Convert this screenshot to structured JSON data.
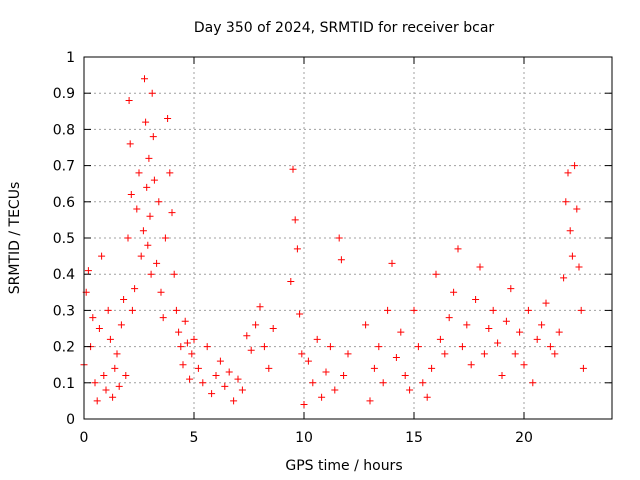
{
  "chart_data": {
    "type": "scatter",
    "title": "Day 350 of 2024, SRMTID for receiver bcar",
    "xlabel": "GPS time / hours",
    "ylabel": "SRMTID / TECUs",
    "xlim": [
      0,
      24
    ],
    "ylim": [
      0,
      1
    ],
    "xticks": [
      0,
      5,
      10,
      15,
      20
    ],
    "xtick_labels": [
      "0",
      "5",
      "10",
      "15",
      "20"
    ],
    "yticks": [
      0,
      0.1,
      0.2,
      0.3,
      0.4,
      0.5,
      0.6,
      0.7,
      0.8,
      0.9,
      1
    ],
    "ytick_labels": [
      "0",
      "0.1",
      "0.2",
      "0.3",
      "0.4",
      "0.5",
      "0.6",
      "0.7",
      "0.8",
      "0.9",
      "1"
    ],
    "grid": true,
    "marker": "+",
    "color": "#ff0000",
    "series": [
      {
        "name": "bcar",
        "x": [
          0.0,
          0.1,
          0.2,
          0.3,
          0.4,
          0.5,
          0.6,
          0.7,
          0.8,
          0.9,
          1.0,
          1.1,
          1.2,
          1.3,
          1.4,
          1.5,
          1.6,
          1.7,
          1.8,
          1.9,
          2.0,
          2.05,
          2.1,
          2.15,
          2.2,
          2.3,
          2.4,
          2.5,
          2.6,
          2.7,
          2.75,
          2.8,
          2.85,
          2.9,
          2.95,
          3.0,
          3.05,
          3.1,
          3.15,
          3.2,
          3.3,
          3.4,
          3.5,
          3.6,
          3.7,
          3.8,
          3.9,
          4.0,
          4.1,
          4.2,
          4.3,
          4.4,
          4.5,
          4.6,
          4.7,
          4.8,
          4.9,
          5.0,
          5.2,
          5.4,
          5.6,
          5.8,
          6.0,
          6.2,
          6.4,
          6.6,
          6.8,
          7.0,
          7.2,
          7.4,
          7.6,
          7.8,
          8.0,
          8.2,
          8.4,
          8.6,
          9.4,
          9.5,
          9.6,
          9.7,
          9.8,
          9.9,
          10.0,
          10.2,
          10.4,
          10.6,
          10.8,
          11.0,
          11.2,
          11.4,
          11.6,
          11.7,
          11.8,
          12.0,
          12.8,
          13.0,
          13.2,
          13.4,
          13.6,
          13.8,
          14.0,
          14.2,
          14.4,
          14.6,
          14.8,
          15.0,
          15.2,
          15.4,
          15.6,
          15.8,
          16.0,
          16.2,
          16.4,
          16.6,
          16.8,
          17.0,
          17.2,
          17.4,
          17.6,
          17.8,
          18.0,
          18.2,
          18.4,
          18.6,
          18.8,
          19.0,
          19.2,
          19.4,
          19.6,
          19.8,
          20.0,
          20.2,
          20.4,
          20.6,
          20.8,
          21.0,
          21.2,
          21.4,
          21.6,
          21.8,
          21.9,
          22.0,
          22.1,
          22.2,
          22.3,
          22.4,
          22.5,
          22.6,
          22.7
        ],
        "y": [
          0.15,
          0.35,
          0.41,
          0.2,
          0.28,
          0.1,
          0.05,
          0.25,
          0.45,
          0.12,
          0.08,
          0.3,
          0.22,
          0.06,
          0.14,
          0.18,
          0.09,
          0.26,
          0.33,
          0.12,
          0.5,
          0.88,
          0.76,
          0.62,
          0.3,
          0.36,
          0.58,
          0.68,
          0.45,
          0.52,
          0.94,
          0.82,
          0.64,
          0.48,
          0.72,
          0.56,
          0.4,
          0.9,
          0.78,
          0.66,
          0.43,
          0.6,
          0.35,
          0.28,
          0.5,
          0.83,
          0.68,
          0.57,
          0.4,
          0.3,
          0.24,
          0.2,
          0.15,
          0.27,
          0.21,
          0.11,
          0.18,
          0.22,
          0.14,
          0.1,
          0.2,
          0.07,
          0.12,
          0.16,
          0.09,
          0.13,
          0.05,
          0.11,
          0.08,
          0.23,
          0.19,
          0.26,
          0.31,
          0.2,
          0.14,
          0.25,
          0.38,
          0.69,
          0.55,
          0.47,
          0.29,
          0.18,
          0.04,
          0.16,
          0.1,
          0.22,
          0.06,
          0.13,
          0.2,
          0.08,
          0.5,
          0.44,
          0.12,
          0.18,
          0.26,
          0.05,
          0.14,
          0.2,
          0.1,
          0.3,
          0.43,
          0.17,
          0.24,
          0.12,
          0.08,
          0.3,
          0.2,
          0.1,
          0.06,
          0.14,
          0.4,
          0.22,
          0.18,
          0.28,
          0.35,
          0.47,
          0.2,
          0.26,
          0.15,
          0.33,
          0.42,
          0.18,
          0.25,
          0.3,
          0.21,
          0.12,
          0.27,
          0.36,
          0.18,
          0.24,
          0.15,
          0.3,
          0.1,
          0.22,
          0.26,
          0.32,
          0.2,
          0.18,
          0.24,
          0.39,
          0.6,
          0.68,
          0.52,
          0.45,
          0.7,
          0.58,
          0.42,
          0.3,
          0.14
        ]
      }
    ]
  }
}
